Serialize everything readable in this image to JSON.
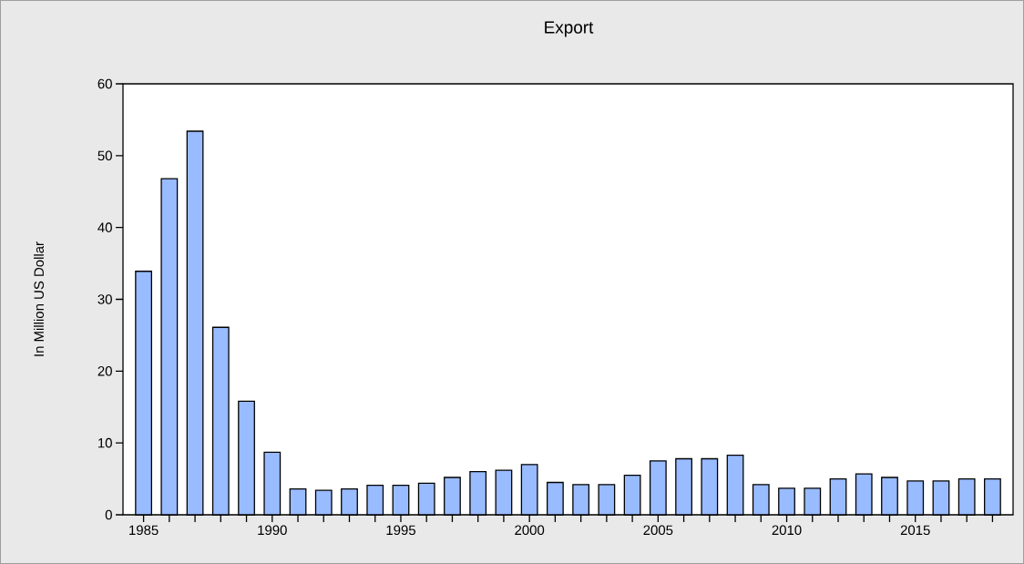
{
  "chart_data": {
    "type": "bar",
    "title": "Export",
    "ylabel": "In Million US Dollar",
    "x": [
      1985,
      1986,
      1987,
      1988,
      1989,
      1990,
      1991,
      1992,
      1993,
      1994,
      1995,
      1996,
      1997,
      1998,
      1999,
      2000,
      2001,
      2002,
      2003,
      2004,
      2005,
      2006,
      2007,
      2008,
      2009,
      2010,
      2011,
      2012,
      2013,
      2014,
      2015,
      2016,
      2017,
      2018
    ],
    "values": [
      33.9,
      46.8,
      53.4,
      26.1,
      15.8,
      8.7,
      3.6,
      3.4,
      3.6,
      4.1,
      4.1,
      4.4,
      5.2,
      6.0,
      6.2,
      7.0,
      4.5,
      4.2,
      4.2,
      5.5,
      7.5,
      7.8,
      7.8,
      8.3,
      4.2,
      3.7,
      3.7,
      5.0,
      5.7,
      5.2,
      4.7,
      4.7,
      5.0,
      5.0
    ],
    "color": "#99bbff",
    "xlim": [
      1984.2,
      2018.8
    ],
    "xticks": [
      1985,
      {
        "value": 1986,
        "label": null
      },
      {
        "value": 1987,
        "label": null
      },
      {
        "value": 1988,
        "label": null
      },
      {
        "value": 1989,
        "label": null
      },
      1990,
      {
        "value": 1991,
        "label": null
      },
      {
        "value": 1992,
        "label": null
      },
      {
        "value": 1993,
        "label": null
      },
      {
        "value": 1994,
        "label": null
      },
      1995,
      {
        "value": 1996,
        "label": null
      },
      {
        "value": 1997,
        "label": null
      },
      {
        "value": 1998,
        "label": null
      },
      {
        "value": 1999,
        "label": null
      },
      2000,
      {
        "value": 2001,
        "label": null
      },
      {
        "value": 2002,
        "label": null
      },
      {
        "value": 2003,
        "label": null
      },
      {
        "value": 2004,
        "label": null
      },
      2005,
      {
        "value": 2006,
        "label": null
      },
      {
        "value": 2007,
        "label": null
      },
      {
        "value": 2008,
        "label": null
      },
      {
        "value": 2009,
        "label": null
      },
      2010,
      {
        "value": 2011,
        "label": null
      },
      {
        "value": 2012,
        "label": null
      },
      {
        "value": 2013,
        "label": null
      },
      {
        "value": 2014,
        "label": null
      },
      2015,
      {
        "value": 2016,
        "label": null
      },
      {
        "value": 2017,
        "label": null
      },
      {
        "value": 2018,
        "label": null
      }
    ],
    "ylim": [
      0,
      60
    ],
    "yticks": [
      0,
      10,
      20,
      30,
      40,
      50,
      60
    ],
    "grid": false
  }
}
